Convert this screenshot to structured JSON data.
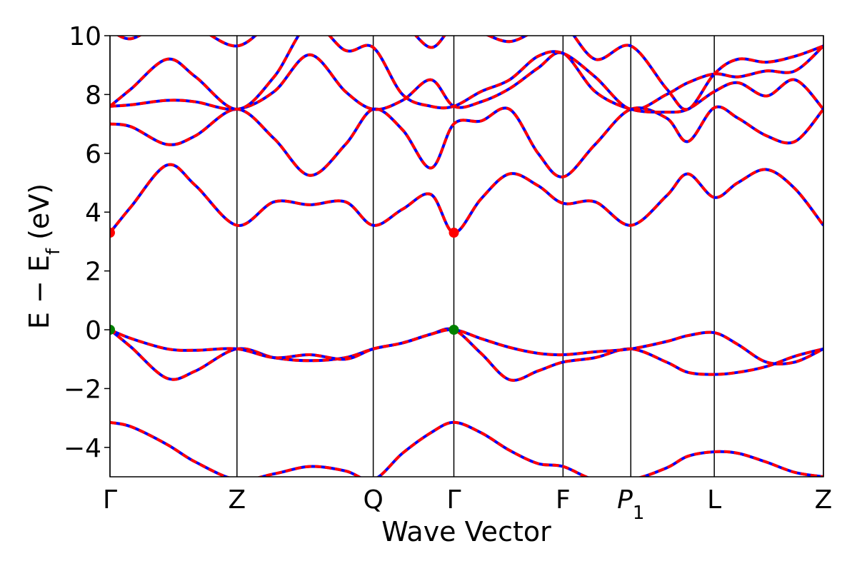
{
  "chart_data": {
    "type": "line",
    "title": "",
    "xlabel": "Wave Vector",
    "ylabel": "E − E",
    "ylabel_subscript": "f",
    "ylabel_unit": " (eV)",
    "ylim": [
      -5,
      10
    ],
    "yticks": [
      {
        "value": -4,
        "label": "−4"
      },
      {
        "value": -2,
        "label": "−2"
      },
      {
        "value": 0,
        "label": "0"
      },
      {
        "value": 2,
        "label": "2"
      },
      {
        "value": 4,
        "label": "4"
      },
      {
        "value": 6,
        "label": "6"
      },
      {
        "value": 8,
        "label": "8"
      },
      {
        "value": 10,
        "label": "10"
      }
    ],
    "xlim": [
      0,
      1
    ],
    "kpoints": [
      {
        "pos": 0.0,
        "label": "Γ"
      },
      {
        "pos": 0.178,
        "label": "Z"
      },
      {
        "pos": 0.369,
        "label": "Q"
      },
      {
        "pos": 0.482,
        "label": "Γ"
      },
      {
        "pos": 0.635,
        "label": "F"
      },
      {
        "pos": 0.73,
        "label": "P",
        "subscript": "1"
      },
      {
        "pos": 0.847,
        "label": "L"
      },
      {
        "pos": 1.0,
        "label": "Z"
      }
    ],
    "series_colors": {
      "overlay": "#ff0000",
      "base": "#0000ff"
    },
    "bands": [
      {
        "x": [
          0,
          0.03,
          0.08,
          0.12,
          0.178,
          0.23,
          0.28,
          0.33,
          0.369,
          0.41,
          0.45,
          0.482,
          0.52,
          0.56,
          0.6,
          0.635,
          0.68,
          0.73,
          0.78,
          0.81,
          0.847,
          0.88,
          0.92,
          0.96,
          1.0
        ],
        "y": [
          -3.15,
          -3.3,
          -3.9,
          -4.5,
          -5.1,
          -4.9,
          -4.65,
          -4.8,
          -5.1,
          -4.2,
          -3.5,
          -3.15,
          -3.5,
          -4.1,
          -4.55,
          -4.65,
          -5.1,
          -5.1,
          -4.7,
          -4.3,
          -4.15,
          -4.2,
          -4.5,
          -4.85,
          -5.0
        ]
      },
      {
        "x": [
          0,
          0.03,
          0.08,
          0.12,
          0.178,
          0.23,
          0.28,
          0.33,
          0.369,
          0.41,
          0.45,
          0.482,
          0.52,
          0.56,
          0.6,
          0.635,
          0.68,
          0.73,
          0.78,
          0.81,
          0.847,
          0.88,
          0.92,
          0.96,
          1.0
        ],
        "y": [
          0,
          -0.6,
          -1.65,
          -1.4,
          -0.65,
          -0.95,
          -1.05,
          -0.95,
          -0.65,
          -0.45,
          -0.15,
          0,
          -0.8,
          -1.7,
          -1.4,
          -1.1,
          -0.95,
          -0.65,
          -1.1,
          -1.45,
          -1.52,
          -1.45,
          -1.25,
          -0.9,
          -0.65
        ]
      },
      {
        "x": [
          0,
          0.03,
          0.08,
          0.12,
          0.178,
          0.23,
          0.28,
          0.33,
          0.369,
          0.41,
          0.45,
          0.482,
          0.52,
          0.56,
          0.6,
          0.635,
          0.68,
          0.73,
          0.78,
          0.81,
          0.847,
          0.88,
          0.92,
          0.96,
          1.0
        ],
        "y": [
          0,
          -0.3,
          -0.65,
          -0.7,
          -0.65,
          -0.95,
          -0.85,
          -1.0,
          -0.65,
          -0.45,
          -0.15,
          0,
          -0.3,
          -0.6,
          -0.8,
          -0.85,
          -0.75,
          -0.65,
          -0.4,
          -0.2,
          -0.1,
          -0.5,
          -1.1,
          -1.1,
          -0.65
        ]
      },
      {
        "x": [
          0,
          0.03,
          0.08,
          0.12,
          0.178,
          0.23,
          0.28,
          0.33,
          0.369,
          0.41,
          0.45,
          0.482,
          0.52,
          0.56,
          0.6,
          0.635,
          0.68,
          0.73,
          0.78,
          0.81,
          0.847,
          0.88,
          0.92,
          0.96,
          1.0
        ],
        "y": [
          3.3,
          4.2,
          5.6,
          4.9,
          3.55,
          4.35,
          4.25,
          4.35,
          3.55,
          4.1,
          4.6,
          3.3,
          4.45,
          5.3,
          4.9,
          4.3,
          4.35,
          3.55,
          4.55,
          5.3,
          4.5,
          5.0,
          5.45,
          4.8,
          3.55
        ]
      },
      {
        "x": [
          0,
          0.03,
          0.08,
          0.12,
          0.178,
          0.23,
          0.28,
          0.33,
          0.369,
          0.41,
          0.45,
          0.482,
          0.52,
          0.56,
          0.6,
          0.635,
          0.68,
          0.73,
          0.78,
          0.81,
          0.847,
          0.88,
          0.92,
          0.96,
          1.0
        ],
        "y": [
          7.0,
          6.9,
          6.3,
          6.6,
          7.5,
          6.5,
          5.25,
          6.3,
          7.5,
          6.8,
          5.5,
          7.0,
          7.1,
          7.5,
          6.0,
          5.2,
          6.3,
          7.5,
          7.2,
          6.4,
          7.55,
          7.2,
          6.6,
          6.4,
          7.5
        ]
      },
      {
        "x": [
          0,
          0.03,
          0.08,
          0.12,
          0.178,
          0.23,
          0.28,
          0.33,
          0.369,
          0.41,
          0.45,
          0.482,
          0.52,
          0.56,
          0.6,
          0.635,
          0.68,
          0.73,
          0.78,
          0.81,
          0.847,
          0.88,
          0.92,
          0.96,
          1.0
        ],
        "y": [
          7.6,
          7.65,
          7.8,
          7.75,
          7.5,
          8.1,
          9.35,
          8.1,
          7.5,
          7.8,
          8.5,
          7.6,
          7.75,
          8.2,
          8.9,
          9.4,
          8.1,
          7.5,
          7.4,
          7.5,
          8.1,
          8.4,
          7.95,
          8.5,
          7.5
        ]
      },
      {
        "x": [
          0,
          0.03,
          0.08,
          0.12,
          0.178,
          0.23,
          0.28,
          0.33,
          0.369,
          0.41,
          0.45,
          0.482,
          0.52,
          0.56,
          0.6,
          0.635,
          0.68,
          0.73,
          0.78,
          0.81,
          0.847,
          0.88,
          0.92,
          0.96,
          1.0
        ],
        "y": [
          7.6,
          8.2,
          9.2,
          8.6,
          7.5,
          8.6,
          10.4,
          9.5,
          9.6,
          8.0,
          7.6,
          7.6,
          8.1,
          8.5,
          9.3,
          9.4,
          8.6,
          7.5,
          8.0,
          8.4,
          8.7,
          8.6,
          8.8,
          8.8,
          9.65
        ]
      },
      {
        "x": [
          0,
          0.03,
          0.08,
          0.12,
          0.178,
          0.23,
          0.28,
          0.33,
          0.369,
          0.41,
          0.45,
          0.482,
          0.52,
          0.56,
          0.6,
          0.635,
          0.68,
          0.73,
          0.78,
          0.81,
          0.847,
          0.88,
          0.92,
          0.96,
          1.0
        ],
        "y": [
          10.2,
          9.9,
          10.5,
          10.3,
          9.65,
          10.5,
          10.8,
          10.6,
          10.4,
          10.4,
          9.6,
          10.3,
          10.1,
          9.8,
          10.2,
          10.4,
          9.2,
          9.65,
          8.2,
          7.5,
          8.7,
          9.2,
          9.1,
          9.3,
          9.65
        ]
      }
    ],
    "markers": [
      {
        "x": 0.0,
        "y": 3.3,
        "color": "#ff0000"
      },
      {
        "x": 0.482,
        "y": 3.3,
        "color": "#ff0000"
      },
      {
        "x": 0.0,
        "y": 0.0,
        "color": "#008000"
      },
      {
        "x": 0.482,
        "y": 0.0,
        "color": "#008000"
      }
    ]
  }
}
